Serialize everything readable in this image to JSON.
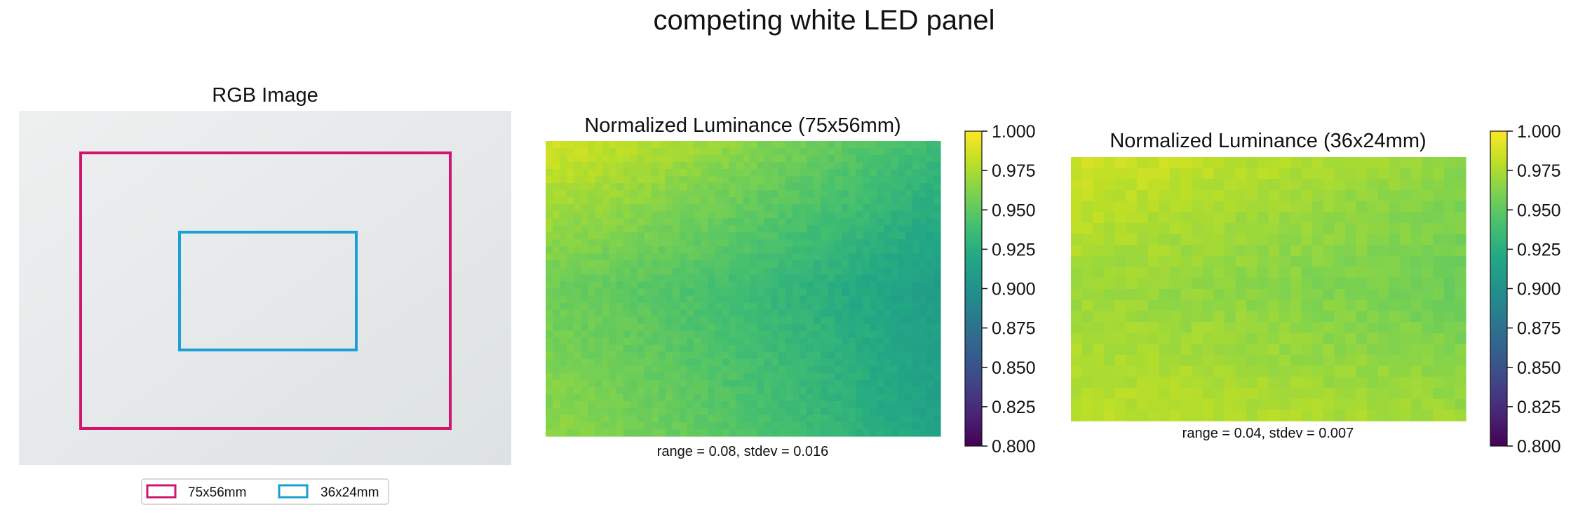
{
  "figure": {
    "title": "competing white LED panel"
  },
  "rgb_panel": {
    "title": "RGB Image",
    "legend": [
      {
        "label": "75x56mm",
        "color": "#d0156e"
      },
      {
        "label": "36x24mm",
        "color": "#1a9fd6"
      }
    ]
  },
  "colorbar": {
    "colormap": "viridis",
    "min": 0.8,
    "max": 1.0,
    "ticks": [
      "1.000",
      "0.975",
      "0.950",
      "0.925",
      "0.900",
      "0.875",
      "0.850",
      "0.825",
      "0.800"
    ]
  },
  "chart_data": [
    {
      "type": "heatmap",
      "title": "Normalized Luminance (75x56mm)",
      "caption": "range = 0.08, stdev = 0.016",
      "colormap": "viridis",
      "vmin": 0.8,
      "vmax": 1.0,
      "grid": {
        "cols": 56,
        "rows": 42
      },
      "trend": {
        "description": "brightest at top-left (~0.985), decreasing toward right edge (~0.91)",
        "top_left": 0.985,
        "top_right": 0.935,
        "middle_left": 0.955,
        "middle_right": 0.91,
        "bottom_left": 0.965,
        "bottom_right": 0.915
      }
    },
    {
      "type": "heatmap",
      "title": "Normalized Luminance (36x24mm)",
      "caption": "range = 0.04, stdev = 0.007",
      "colormap": "viridis",
      "vmin": 0.8,
      "vmax": 1.0,
      "grid": {
        "cols": 36,
        "rows": 24
      },
      "trend": {
        "description": "fairly uniform, ~0.975 at left/bottom-left, ~0.955 near right middle",
        "top_left": 0.985,
        "top_right": 0.965,
        "middle_left": 0.97,
        "middle_right": 0.955,
        "bottom_left": 0.98,
        "bottom_right": 0.97
      }
    }
  ]
}
